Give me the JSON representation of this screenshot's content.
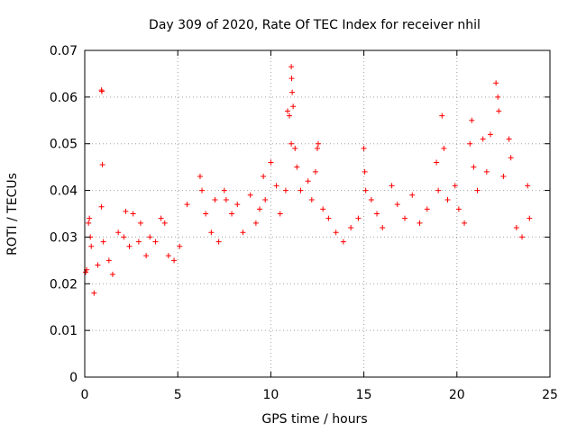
{
  "chart_data": {
    "type": "scatter",
    "title": "Day 309 of 2020, Rate Of TEC Index for receiver nhil",
    "xlabel": "GPS time / hours",
    "ylabel": "ROTI / TECUs",
    "xlim": [
      0,
      25
    ],
    "ylim": [
      0,
      0.07
    ],
    "x_ticks": [
      "0",
      "5",
      "10",
      "15",
      "20",
      "25"
    ],
    "y_ticks": [
      "0",
      "0.01",
      "0.02",
      "0.03",
      "0.04",
      "0.05",
      "0.06",
      "0.07"
    ],
    "grid": true,
    "legend": "none",
    "marker": "+",
    "color": "#ff0000",
    "series": [
      {
        "points": [
          [
            0.05,
            0.0225
          ],
          [
            0.1,
            0.023
          ],
          [
            0.2,
            0.033
          ],
          [
            0.25,
            0.034
          ],
          [
            0.3,
            0.03
          ],
          [
            0.35,
            0.028
          ],
          [
            0.5,
            0.018
          ],
          [
            0.7,
            0.024
          ],
          [
            0.9,
            0.0615
          ],
          [
            0.92,
            0.0612
          ],
          [
            0.95,
            0.0455
          ],
          [
            0.9,
            0.0365
          ],
          [
            1.0,
            0.029
          ],
          [
            1.3,
            0.025
          ],
          [
            1.5,
            0.022
          ],
          [
            1.8,
            0.031
          ],
          [
            2.1,
            0.03
          ],
          [
            2.2,
            0.0355
          ],
          [
            2.4,
            0.028
          ],
          [
            2.6,
            0.035
          ],
          [
            2.9,
            0.029
          ],
          [
            3.0,
            0.033
          ],
          [
            3.3,
            0.026
          ],
          [
            3.5,
            0.03
          ],
          [
            3.8,
            0.029
          ],
          [
            4.1,
            0.034
          ],
          [
            4.3,
            0.033
          ],
          [
            4.5,
            0.026
          ],
          [
            4.8,
            0.025
          ],
          [
            5.1,
            0.028
          ],
          [
            5.5,
            0.037
          ],
          [
            6.2,
            0.043
          ],
          [
            6.3,
            0.04
          ],
          [
            6.5,
            0.035
          ],
          [
            6.8,
            0.031
          ],
          [
            7.0,
            0.038
          ],
          [
            7.2,
            0.029
          ],
          [
            7.5,
            0.04
          ],
          [
            7.6,
            0.038
          ],
          [
            7.9,
            0.035
          ],
          [
            8.2,
            0.037
          ],
          [
            8.5,
            0.031
          ],
          [
            8.9,
            0.039
          ],
          [
            9.2,
            0.033
          ],
          [
            9.4,
            0.036
          ],
          [
            9.6,
            0.043
          ],
          [
            9.7,
            0.038
          ],
          [
            10.0,
            0.046
          ],
          [
            10.3,
            0.041
          ],
          [
            10.5,
            0.035
          ],
          [
            10.8,
            0.04
          ],
          [
            10.9,
            0.057
          ],
          [
            11.0,
            0.056
          ],
          [
            11.1,
            0.0665
          ],
          [
            11.12,
            0.064
          ],
          [
            11.15,
            0.061
          ],
          [
            11.2,
            0.058
          ],
          [
            11.1,
            0.05
          ],
          [
            11.3,
            0.049
          ],
          [
            11.4,
            0.045
          ],
          [
            11.6,
            0.04
          ],
          [
            12.0,
            0.042
          ],
          [
            12.2,
            0.038
          ],
          [
            12.4,
            0.044
          ],
          [
            12.5,
            0.049
          ],
          [
            12.55,
            0.05
          ],
          [
            12.8,
            0.036
          ],
          [
            13.1,
            0.034
          ],
          [
            13.5,
            0.031
          ],
          [
            13.9,
            0.029
          ],
          [
            14.3,
            0.032
          ],
          [
            14.7,
            0.034
          ],
          [
            15.0,
            0.049
          ],
          [
            15.05,
            0.044
          ],
          [
            15.1,
            0.04
          ],
          [
            15.4,
            0.038
          ],
          [
            15.7,
            0.035
          ],
          [
            16.0,
            0.032
          ],
          [
            16.5,
            0.041
          ],
          [
            16.8,
            0.037
          ],
          [
            17.2,
            0.034
          ],
          [
            17.6,
            0.039
          ],
          [
            18.0,
            0.033
          ],
          [
            18.4,
            0.036
          ],
          [
            18.9,
            0.046
          ],
          [
            19.0,
            0.04
          ],
          [
            19.2,
            0.056
          ],
          [
            19.3,
            0.049
          ],
          [
            19.5,
            0.038
          ],
          [
            19.9,
            0.041
          ],
          [
            20.1,
            0.036
          ],
          [
            20.4,
            0.033
          ],
          [
            20.7,
            0.05
          ],
          [
            20.8,
            0.055
          ],
          [
            20.9,
            0.045
          ],
          [
            21.1,
            0.04
          ],
          [
            21.4,
            0.051
          ],
          [
            21.6,
            0.044
          ],
          [
            21.8,
            0.052
          ],
          [
            22.1,
            0.063
          ],
          [
            22.2,
            0.06
          ],
          [
            22.25,
            0.057
          ],
          [
            22.5,
            0.043
          ],
          [
            22.8,
            0.051
          ],
          [
            22.9,
            0.047
          ],
          [
            23.2,
            0.032
          ],
          [
            23.5,
            0.03
          ],
          [
            23.8,
            0.041
          ],
          [
            23.9,
            0.034
          ]
        ]
      }
    ]
  }
}
